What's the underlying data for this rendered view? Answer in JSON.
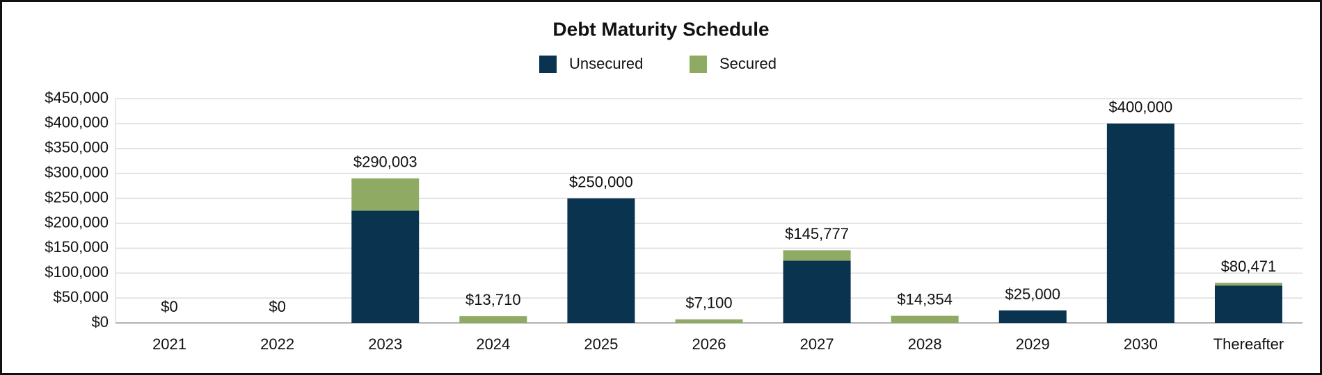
{
  "chart_data": {
    "type": "stacked_bar",
    "title": "Debt Maturity Schedule",
    "categories": [
      "2021",
      "2022",
      "2023",
      "2024",
      "2025",
      "2026",
      "2027",
      "2028",
      "2029",
      "2030",
      "Thereafter"
    ],
    "series": [
      {
        "name": "Unsecured",
        "color": "#0a3350",
        "values": [
          0,
          0,
          225000,
          0,
          250000,
          0,
          125000,
          0,
          25000,
          400000,
          75000
        ]
      },
      {
        "name": "Secured",
        "color": "#8faa63",
        "values": [
          0,
          0,
          65003,
          13710,
          0,
          7100,
          20777,
          14354,
          0,
          0,
          5471
        ]
      }
    ],
    "total_labels": [
      "$0",
      "$0",
      "$290,003",
      "$13,710",
      "$250,000",
      "$7,100",
      "$145,777",
      "$14,354",
      "$25,000",
      "$400,000",
      "$80,471"
    ],
    "ylim": [
      0,
      450000
    ],
    "yticks": [
      {
        "value": 0,
        "label": "$0"
      },
      {
        "value": 50000,
        "label": "$50,000"
      },
      {
        "value": 100000,
        "label": "$100,000"
      },
      {
        "value": 150000,
        "label": "$150,000"
      },
      {
        "value": 200000,
        "label": "$200,000"
      },
      {
        "value": 250000,
        "label": "$250,000"
      },
      {
        "value": 300000,
        "label": "$300,000"
      },
      {
        "value": 350000,
        "label": "$350,000"
      },
      {
        "value": 400000,
        "label": "$400,000"
      },
      {
        "value": 450000,
        "label": "$450,000"
      }
    ],
    "grid": true,
    "legend": "top"
  }
}
